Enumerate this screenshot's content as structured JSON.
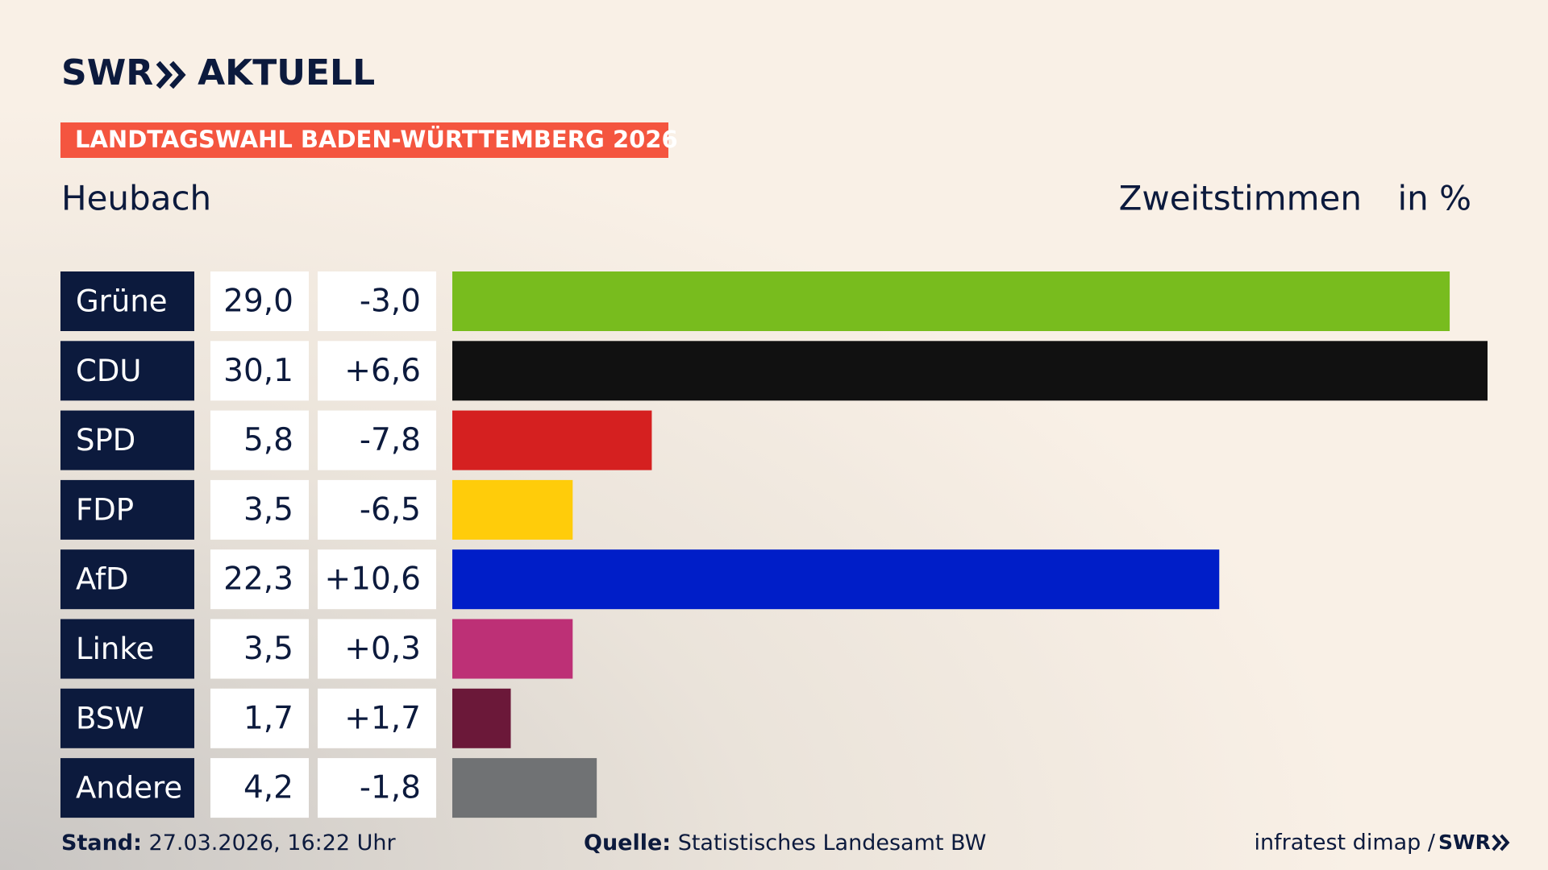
{
  "brand": "SWR",
  "brand_suffix": "AKTUELL",
  "banner": "LANDTAGSWAHL BADEN-WÜRTTEMBERG 2026",
  "chart_data": {
    "type": "bar",
    "title": "Heubach",
    "subtitle": "Zweitstimmen",
    "unit": "in %",
    "categories": [
      "Grüne",
      "CDU",
      "SPD",
      "FDP",
      "AfD",
      "Linke",
      "BSW",
      "Andere"
    ],
    "values": [
      29.0,
      30.1,
      5.8,
      3.5,
      22.3,
      3.5,
      1.7,
      4.2
    ],
    "value_labels": [
      "29,0",
      "30,1",
      "5,8",
      "3,5",
      "22,3",
      "3,5",
      "1,7",
      "4,2"
    ],
    "changes": [
      "-3,0",
      "+6,6",
      "-7,8",
      "-6,5",
      "+10,6",
      "+0,3",
      "+1,7",
      "-1,8"
    ],
    "colors": [
      "#78bc1e",
      "#111111",
      "#d52020",
      "#ffcc0a",
      "#001ec8",
      "#bd3076",
      "#6b1839",
      "#707274"
    ]
  },
  "footer": {
    "stand_label": "Stand:",
    "stand": "27.03.2026, 16:22 Uhr",
    "source_label": "Quelle:",
    "source": "Statistisches Landesamt BW",
    "credit": "infratest dimap /",
    "credit_brand": "SWR"
  }
}
